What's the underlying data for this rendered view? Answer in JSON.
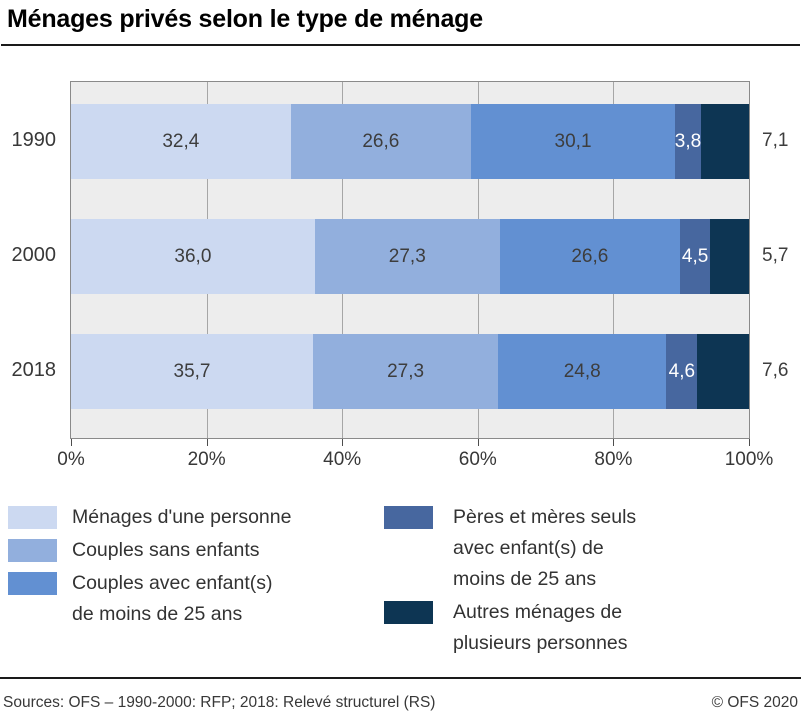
{
  "title": "Ménages privés selon le type de ménage",
  "footer": {
    "source": "Sources: OFS – 1990-2000: RFP; 2018: Relevé structurel (RS)",
    "copyright": "© OFS 2020"
  },
  "chart_data": {
    "type": "bar",
    "orientation": "horizontal",
    "stacked": true,
    "title": "Ménages privés selon le type de ménage",
    "categories": [
      "1990",
      "2000",
      "2018"
    ],
    "series": [
      {
        "name": "Ménages d'une personne",
        "color": "#ccd9f1",
        "values": [
          32.4,
          36.0,
          35.7
        ],
        "label_style": "inside-dark"
      },
      {
        "name": "Couples sans enfants",
        "color": "#92afdd",
        "values": [
          26.6,
          27.3,
          27.3
        ],
        "label_style": "inside-dark"
      },
      {
        "name": "Couples avec enfant(s) de moins de 25 ans",
        "color": "#6290d2",
        "values": [
          30.1,
          26.6,
          24.8
        ],
        "label_style": "inside-dark"
      },
      {
        "name": "Pères et mères seuls avec enfant(s) de moins de 25 ans",
        "color": "#47679f",
        "values": [
          3.8,
          4.5,
          4.6
        ],
        "label_style": "inside-white"
      },
      {
        "name": "Autres ménages de plusieurs personnes",
        "color": "#0d3553",
        "values": [
          7.1,
          5.7,
          7.6
        ],
        "label_style": "outside-dark"
      }
    ],
    "x_axis": {
      "ticks": [
        "0%",
        "20%",
        "40%",
        "60%",
        "80%",
        "100%"
      ],
      "range": [
        0,
        100
      ]
    },
    "decimal_separator": ",",
    "grid": true,
    "legend_position": "below",
    "legend_columns": [
      [
        0,
        1,
        2
      ],
      [
        3,
        4
      ]
    ],
    "plot_background": "#ededed",
    "gridline_color": "#a6a6a6"
  }
}
